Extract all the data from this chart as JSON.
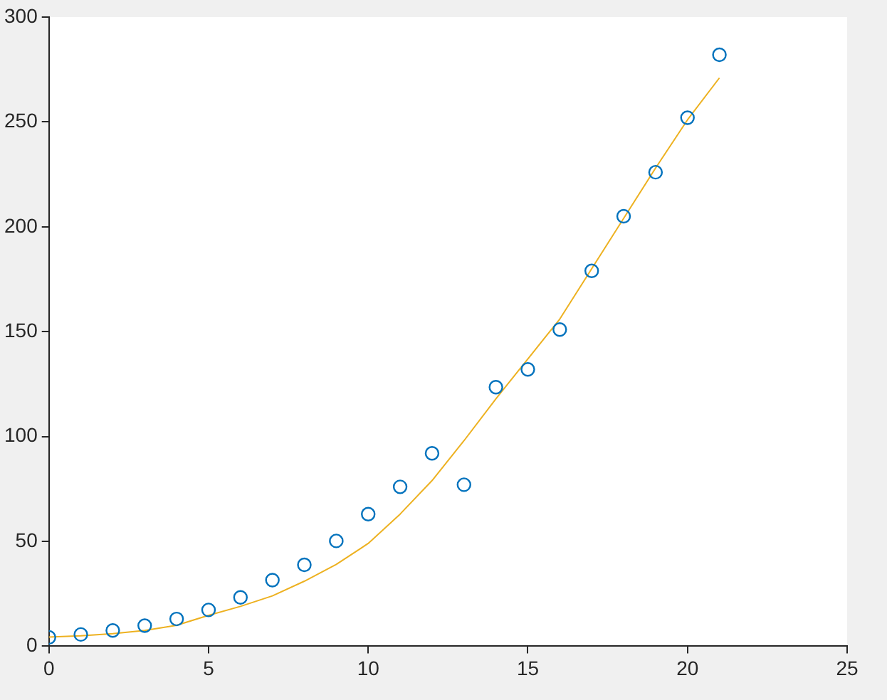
{
  "chart_data": {
    "type": "scatter",
    "x": [
      0,
      1,
      2,
      3,
      4,
      5,
      6,
      7,
      8,
      9,
      10,
      11,
      12,
      13,
      14,
      15,
      16,
      17,
      18,
      19,
      20,
      21
    ],
    "series": [
      {
        "color": "#0072bd",
        "marker": "circle",
        "values": [
          4.2,
          5.6,
          7.5,
          9.8,
          13,
          17.3,
          23.3,
          31.5,
          38.8,
          50.2,
          63,
          76,
          92,
          77,
          123.5,
          132,
          151,
          179,
          205,
          226,
          252,
          282
        ]
      },
      {
        "type": "line",
        "color": "#edb120",
        "marker": "none",
        "values": [
          4.4,
          5,
          6,
          7.5,
          10,
          14.7,
          19,
          24,
          31,
          39,
          49,
          63,
          79,
          98,
          118,
          137,
          156,
          180,
          204,
          228,
          251,
          271
        ]
      }
    ],
    "xlim": [
      0,
      25
    ],
    "xticks": [
      0,
      5,
      10,
      15,
      20,
      25
    ],
    "ylim": [
      0,
      300
    ],
    "yticks": [
      0,
      50,
      100,
      150,
      200,
      250,
      300
    ],
    "grid": false,
    "legend": false
  }
}
